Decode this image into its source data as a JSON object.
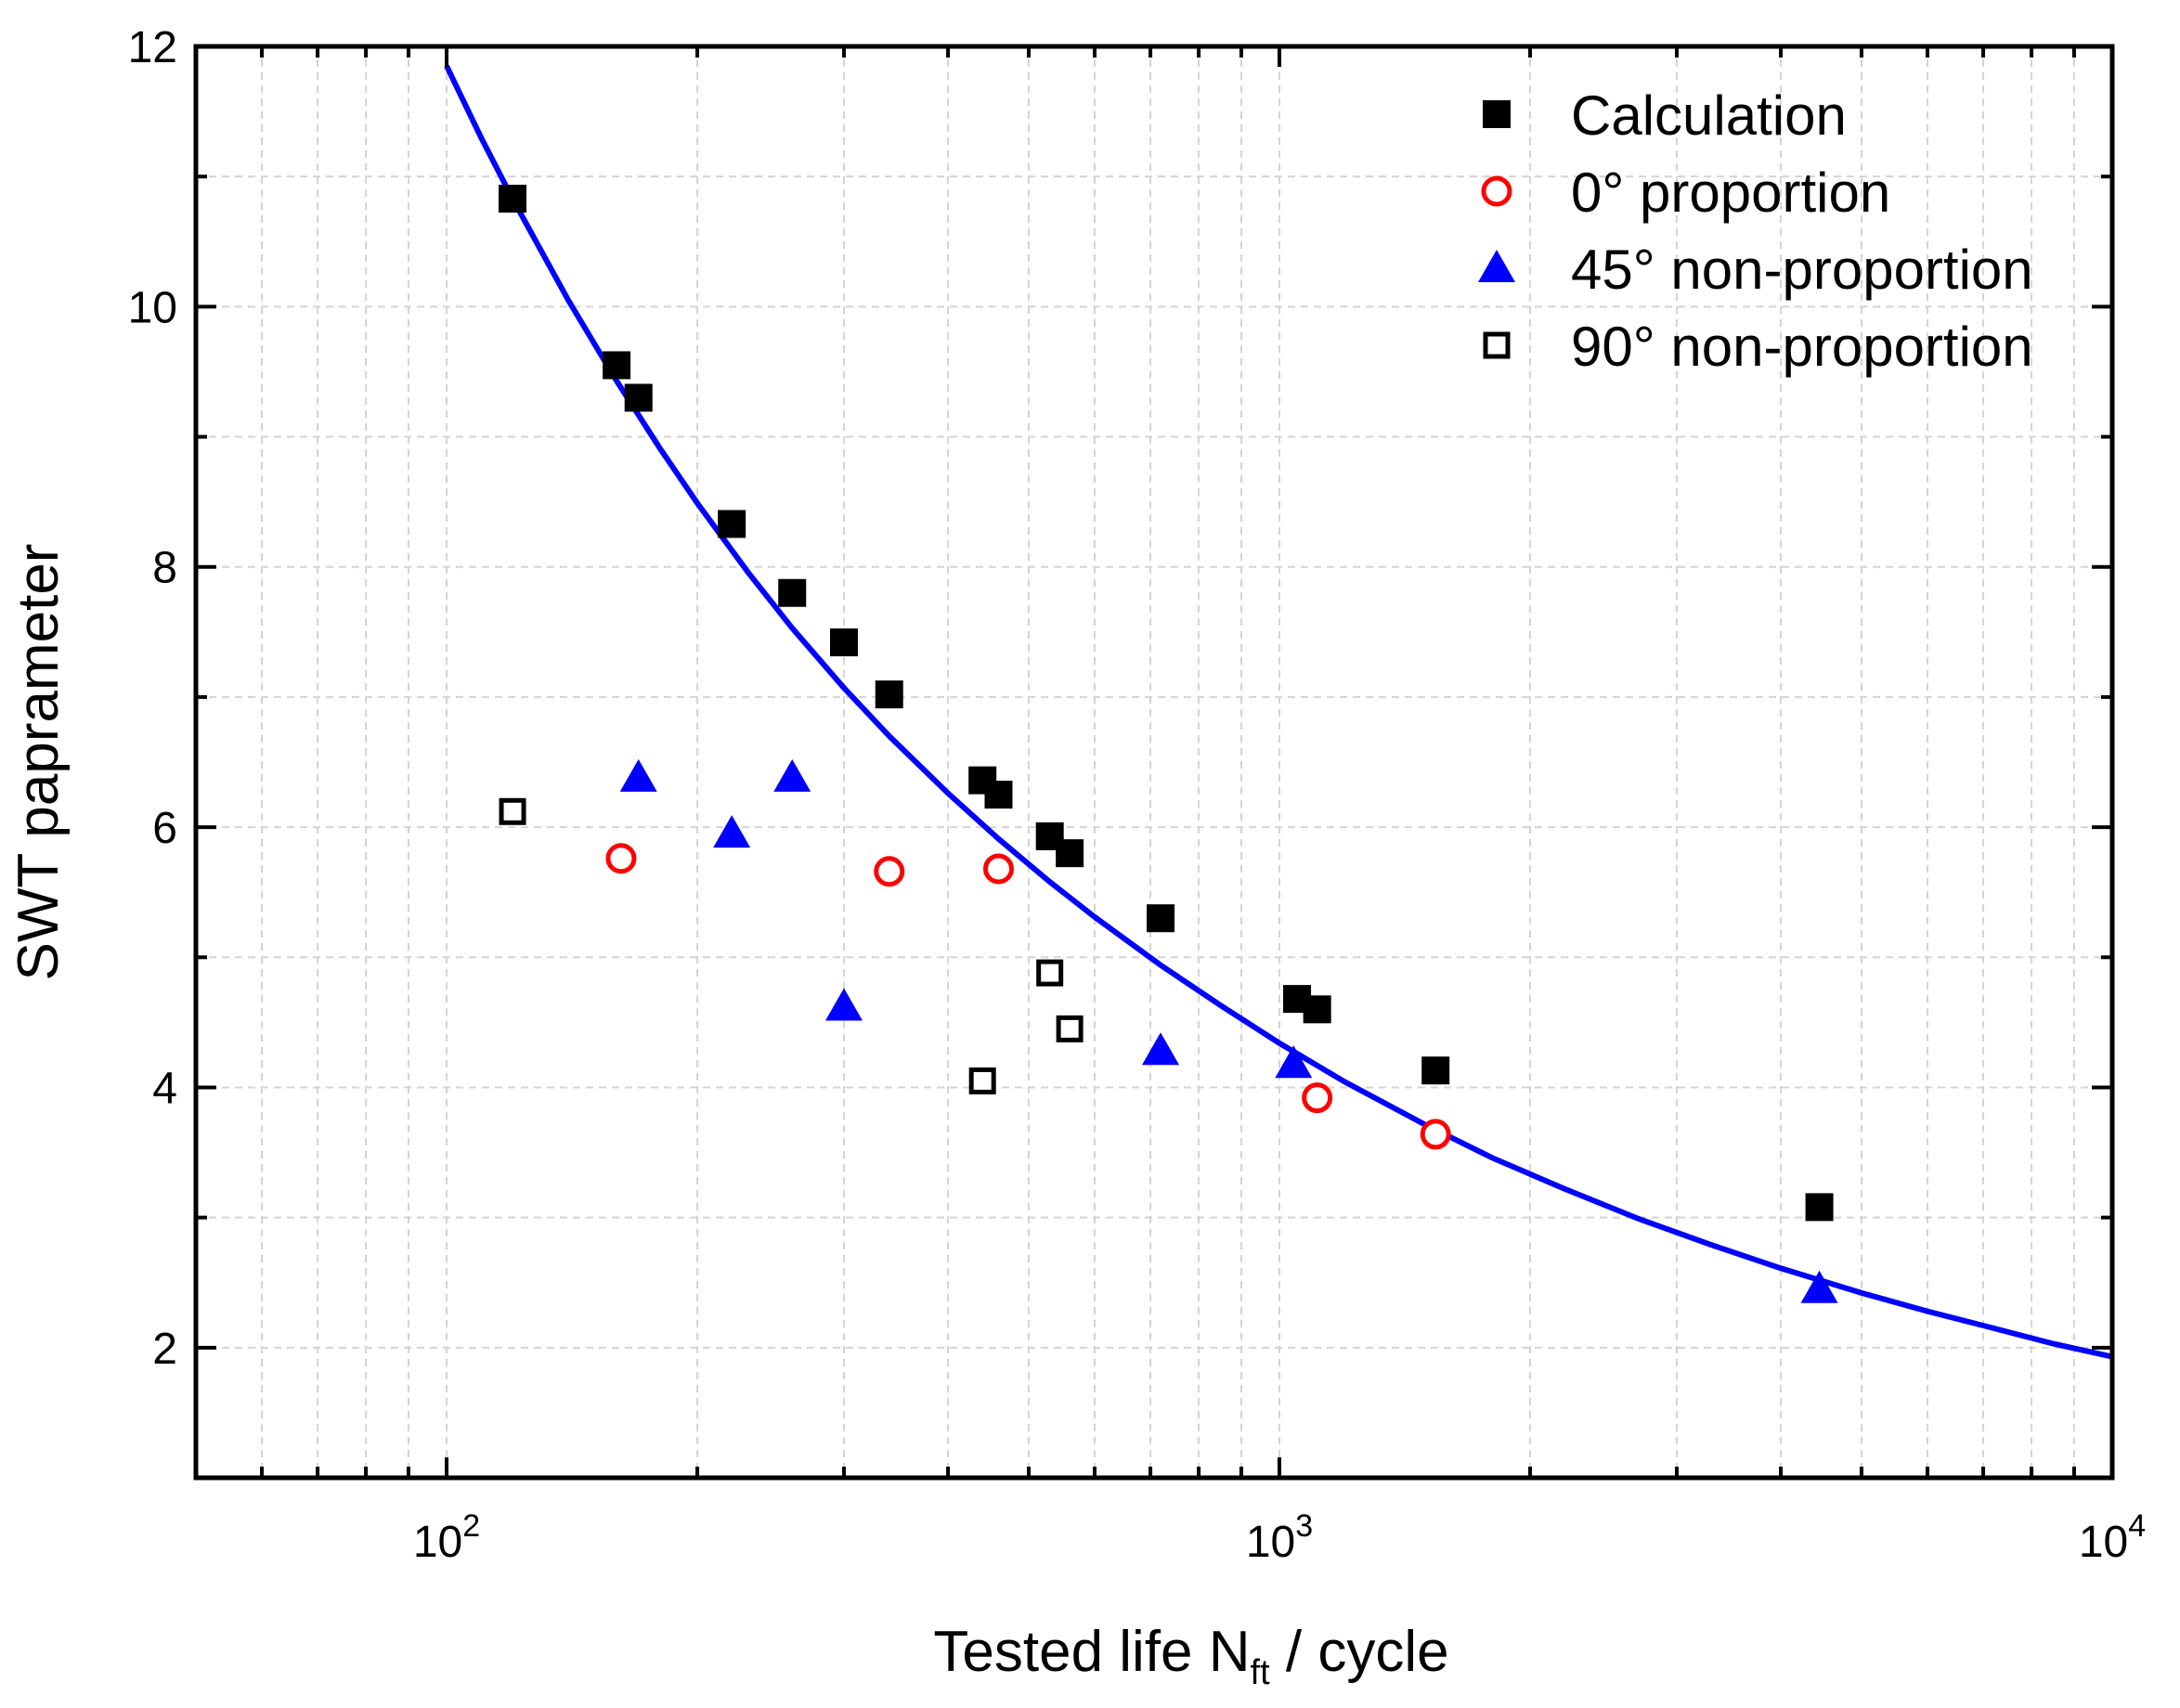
{
  "chart_data": {
    "type": "scatter",
    "xscale": "log",
    "xlim": [
      50,
      10000
    ],
    "ylim": [
      1,
      12
    ],
    "xlabel_main": "Tested life N",
    "xlabel_sub": "ft",
    "xlabel_tail": " / cycle",
    "ylabel": "SWT paprameter",
    "x_ticks": [
      {
        "value": 100,
        "base": "10",
        "exp": "2"
      },
      {
        "value": 1000,
        "base": "10",
        "exp": "3"
      },
      {
        "value": 10000,
        "base": "10",
        "exp": "4"
      }
    ],
    "y_ticks": [
      {
        "value": 2,
        "label": "2"
      },
      {
        "value": 4,
        "label": "4"
      },
      {
        "value": 6,
        "label": "6"
      },
      {
        "value": 8,
        "label": "8"
      },
      {
        "value": 10,
        "label": "10"
      },
      {
        "value": 12,
        "label": "12"
      }
    ],
    "grid": true,
    "legend_position": "top-right",
    "series": [
      {
        "name": "Calculation",
        "marker": "filled-square",
        "color": "#000000",
        "points": [
          [
            120,
            10.83
          ],
          [
            160,
            9.55
          ],
          [
            170,
            9.3
          ],
          [
            220,
            8.33
          ],
          [
            260,
            7.8
          ],
          [
            300,
            7.42
          ],
          [
            340,
            7.02
          ],
          [
            440,
            6.36
          ],
          [
            460,
            6.25
          ],
          [
            530,
            5.93
          ],
          [
            560,
            5.8
          ],
          [
            720,
            5.3
          ],
          [
            1050,
            4.68
          ],
          [
            1110,
            4.6
          ],
          [
            1540,
            4.13
          ],
          [
            4450,
            3.08
          ]
        ]
      },
      {
        "name": "0° proportion",
        "marker": "open-circle",
        "color": "#ff0000",
        "points": [
          [
            162,
            5.76
          ],
          [
            340,
            5.66
          ],
          [
            460,
            5.68
          ],
          [
            1110,
            3.92
          ],
          [
            1540,
            3.64
          ]
        ]
      },
      {
        "name": "45° non-proportion",
        "marker": "filled-triangle",
        "color": "#0000ff",
        "points": [
          [
            170,
            6.38
          ],
          [
            220,
            5.95
          ],
          [
            260,
            6.38
          ],
          [
            300,
            4.62
          ],
          [
            720,
            4.28
          ],
          [
            1040,
            4.18
          ],
          [
            4450,
            2.45
          ]
        ]
      },
      {
        "name": "90° non-proportion",
        "marker": "open-square",
        "color": "#000000",
        "points": [
          [
            120,
            6.12
          ],
          [
            440,
            4.05
          ],
          [
            530,
            4.88
          ],
          [
            560,
            4.45
          ]
        ]
      }
    ],
    "fit_curve": {
      "name": "fit",
      "color": "#0000ff",
      "x": [
        100,
        110,
        120,
        140,
        160,
        180,
        200,
        230,
        260,
        300,
        340,
        400,
        460,
        530,
        600,
        720,
        850,
        1000,
        1200,
        1500,
        1800,
        2200,
        2700,
        3300,
        4000,
        5000,
        6000,
        7000,
        8500,
        10000
      ],
      "y": [
        11.85,
        11.3,
        10.83,
        10.05,
        9.43,
        8.92,
        8.49,
        7.96,
        7.53,
        7.07,
        6.7,
        6.26,
        5.91,
        5.58,
        5.31,
        4.94,
        4.63,
        4.34,
        4.04,
        3.71,
        3.46,
        3.22,
        2.99,
        2.79,
        2.61,
        2.42,
        2.28,
        2.17,
        2.03,
        1.93
      ]
    }
  }
}
